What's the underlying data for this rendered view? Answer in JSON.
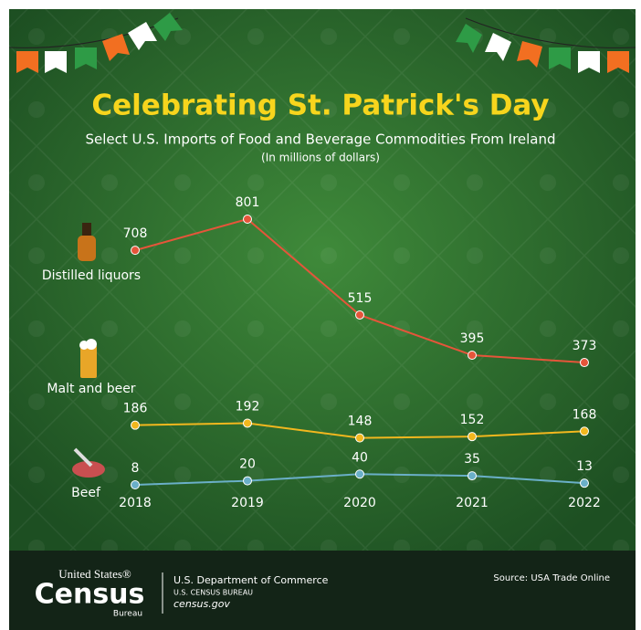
{
  "chart_data": {
    "type": "line",
    "title": "Celebrating St. Patrick's Day",
    "subtitle": "Select U.S. Imports of Food and Beverage Commodities From Ireland",
    "note": "(In millions of dollars)",
    "categories": [
      "2018",
      "2019",
      "2020",
      "2021",
      "2022"
    ],
    "series": [
      {
        "name": "Distilled liquors",
        "color": "#e5553a",
        "values": [
          708,
          801,
          515,
          395,
          373
        ]
      },
      {
        "name": "Malt and beer",
        "color": "#f2b71e",
        "values": [
          186,
          192,
          148,
          152,
          168
        ]
      },
      {
        "name": "Beef",
        "color": "#6aafc8",
        "values": [
          8,
          20,
          40,
          35,
          13
        ]
      }
    ]
  },
  "footer": {
    "logo_top": "United States®",
    "logo_main": "Census",
    "logo_sub": "Bureau",
    "department": "U.S. Department of Commerce",
    "bureau": "U.S. CENSUS BUREAU",
    "website": "census.gov",
    "source": "Source: USA Trade Online"
  }
}
